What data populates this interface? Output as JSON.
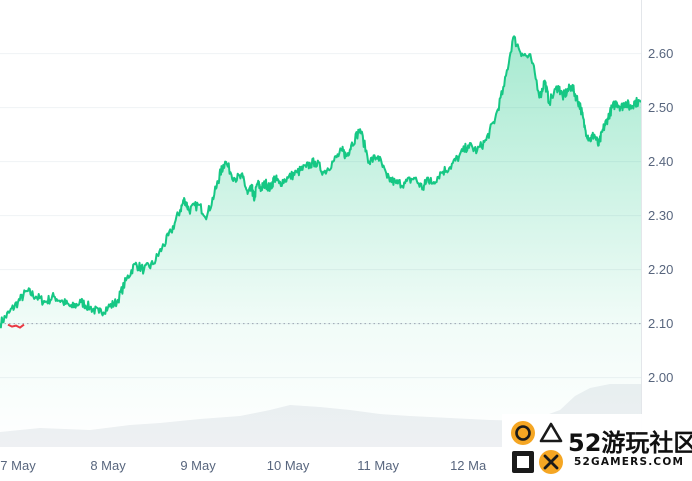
{
  "chart_data": {
    "type": "area",
    "title": "",
    "xlabel": "",
    "ylabel": "",
    "y_axis_side": "right",
    "ylim": [
      1.97,
      2.66
    ],
    "yticks": [
      2.0,
      2.1,
      2.2,
      2.3,
      2.4,
      2.5,
      2.6
    ],
    "ytick_labels": [
      "2.00",
      "2.10",
      "2.20",
      "2.30",
      "2.40",
      "2.50",
      "2.60"
    ],
    "xlim": [
      6.8,
      13.92
    ],
    "xtick_values": [
      7,
      8,
      9,
      10,
      11,
      12
    ],
    "xtick_labels": [
      "7 May",
      "8 May",
      "9 May",
      "10 May",
      "11 May",
      "12 Ma"
    ],
    "reference_line": 2.1,
    "grid": "horizontal",
    "colors": {
      "up": "#16c784",
      "down": "#ea3943",
      "reference": "#9aa4b2",
      "volume": "#eef0f3",
      "grid": "#eff2f5"
    },
    "series": [
      {
        "x": [
          6.8,
          6.9,
          7.0,
          7.1,
          7.2,
          7.3,
          7.4,
          7.5,
          7.6,
          7.7,
          7.8,
          7.9,
          8.0,
          8.1,
          8.2,
          8.3,
          8.4,
          8.5,
          8.6,
          8.7,
          8.8,
          8.85,
          8.9,
          9.0,
          9.1,
          9.2,
          9.25,
          9.3,
          9.4,
          9.5,
          9.55,
          9.6,
          9.62,
          9.66,
          9.7,
          9.75,
          9.8,
          9.85,
          9.9,
          10.0,
          10.1,
          10.2,
          10.3,
          10.4,
          10.5,
          10.6,
          10.65,
          10.7,
          10.8,
          10.9,
          11.0,
          11.1,
          11.2,
          11.3,
          11.4,
          11.5,
          11.55,
          11.6,
          11.7,
          11.8,
          11.9,
          12.0,
          12.1,
          12.2,
          12.3,
          12.4,
          12.5,
          12.6,
          12.7,
          12.8,
          12.85,
          12.9,
          13.0,
          13.05,
          13.1,
          13.15,
          13.2,
          13.25,
          13.3,
          13.35,
          13.4,
          13.45,
          13.5,
          13.55,
          13.6,
          13.65,
          13.7,
          13.75,
          13.8,
          13.85,
          13.92
        ],
        "y": [
          2.1,
          2.12,
          2.14,
          2.16,
          2.15,
          2.14,
          2.15,
          2.14,
          2.13,
          2.14,
          2.13,
          2.12,
          2.13,
          2.14,
          2.18,
          2.21,
          2.2,
          2.21,
          2.24,
          2.27,
          2.31,
          2.33,
          2.31,
          2.32,
          2.3,
          2.35,
          2.38,
          2.4,
          2.37,
          2.37,
          2.34,
          2.35,
          2.33,
          2.36,
          2.35,
          2.36,
          2.35,
          2.37,
          2.36,
          2.37,
          2.38,
          2.39,
          2.4,
          2.38,
          2.4,
          2.42,
          2.41,
          2.43,
          2.46,
          2.4,
          2.41,
          2.37,
          2.36,
          2.36,
          2.37,
          2.35,
          2.37,
          2.36,
          2.38,
          2.39,
          2.41,
          2.43,
          2.42,
          2.44,
          2.48,
          2.54,
          2.63,
          2.6,
          2.59,
          2.52,
          2.55,
          2.51,
          2.54,
          2.52,
          2.53,
          2.54,
          2.52,
          2.5,
          2.46,
          2.44,
          2.45,
          2.43,
          2.46,
          2.48,
          2.5,
          2.51,
          2.5,
          2.51,
          2.5,
          2.51,
          2.51
        ]
      }
    ]
  },
  "watermark": {
    "title": "52游玩社区",
    "domain": "52GAMERS.COM"
  }
}
